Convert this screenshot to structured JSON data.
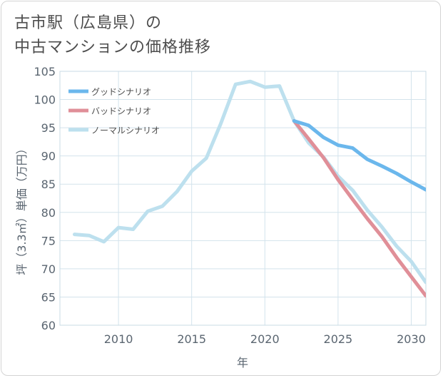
{
  "page": {
    "title_line1": "古市駅（広島県）の",
    "title_line2": "中古マンションの価格推移"
  },
  "chart_data": {
    "type": "line",
    "xlabel": "年",
    "ylabel": "坪（3.3㎡）単価（万円）",
    "xlim": [
      2006,
      2031
    ],
    "ylim": [
      60,
      105
    ],
    "x_ticks": [
      2010,
      2015,
      2020,
      2025,
      2030
    ],
    "y_ticks": [
      60,
      65,
      70,
      75,
      80,
      85,
      90,
      95,
      100,
      105
    ],
    "grid": true,
    "legend_position": "top-left",
    "series": [
      {
        "name": "グッドシナリオ",
        "color": "#6bb7ec",
        "x": [
          2022,
          2023,
          2024,
          2025,
          2026,
          2027,
          2028,
          2029,
          2030,
          2031
        ],
        "y": [
          96.2,
          95.4,
          93.3,
          91.9,
          91.4,
          89.4,
          88.2,
          86.9,
          85.4,
          84.0
        ]
      },
      {
        "name": "バッドシナリオ",
        "color": "#e08f98",
        "x": [
          2022,
          2023,
          2024,
          2025,
          2026,
          2027,
          2028,
          2029,
          2030,
          2031
        ],
        "y": [
          96.2,
          93.0,
          89.7,
          85.8,
          82.3,
          78.9,
          75.7,
          72.0,
          68.6,
          65.2
        ]
      },
      {
        "name": "ノーマルシナリオ",
        "color": "#bde0ee",
        "x": [
          2007,
          2008,
          2009,
          2010,
          2011,
          2012,
          2013,
          2014,
          2015,
          2016,
          2017,
          2018,
          2019,
          2020,
          2021,
          2022,
          2023,
          2024,
          2025,
          2026,
          2027,
          2028,
          2029,
          2030,
          2031
        ],
        "y": [
          76.1,
          75.9,
          74.8,
          77.3,
          77.0,
          80.2,
          81.1,
          83.7,
          87.3,
          89.6,
          95.8,
          102.7,
          103.2,
          102.2,
          102.4,
          96.2,
          92.3,
          89.8,
          86.4,
          83.9,
          80.4,
          77.4,
          74.0,
          71.3,
          67.6
        ]
      }
    ]
  }
}
